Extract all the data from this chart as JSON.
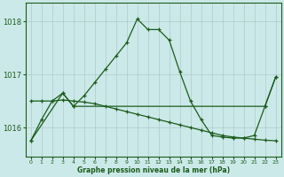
{
  "title": "Graphe pression niveau de la mer (hPa)",
  "background_color": "#cce9e9",
  "grid_color": "#b0c8c8",
  "line_color": "#1a5c1a",
  "xlim": [
    -0.5,
    23.5
  ],
  "ylim": [
    1015.45,
    1018.35
  ],
  "yticks": [
    1016,
    1017,
    1018
  ],
  "xticks": [
    0,
    1,
    2,
    3,
    4,
    5,
    6,
    7,
    8,
    9,
    10,
    11,
    12,
    13,
    14,
    15,
    16,
    17,
    18,
    19,
    20,
    21,
    22,
    23
  ],
  "series1_x": [
    0,
    1,
    2,
    3,
    4,
    5,
    6,
    7,
    8,
    9,
    10,
    11,
    12,
    13,
    14,
    15,
    16,
    17,
    18,
    19,
    20,
    21,
    22,
    23
  ],
  "series1_y": [
    1015.75,
    1016.15,
    1016.5,
    1016.65,
    1016.4,
    1016.6,
    1016.85,
    1017.1,
    1017.35,
    1017.6,
    1018.05,
    1017.85,
    1017.85,
    1017.65,
    1017.05,
    1016.5,
    1016.15,
    1015.85,
    1015.82,
    1015.8,
    1015.8,
    1015.85,
    1016.4,
    1016.95
  ],
  "series2_x": [
    0,
    1,
    2,
    3,
    4,
    5,
    6,
    7,
    8,
    9,
    10,
    11,
    12,
    13,
    14,
    15,
    16,
    17,
    18,
    19,
    20,
    21,
    22,
    23
  ],
  "series2_y": [
    1016.5,
    1016.5,
    1016.5,
    1016.52,
    1016.5,
    1016.48,
    1016.45,
    1016.4,
    1016.35,
    1016.3,
    1016.25,
    1016.2,
    1016.15,
    1016.1,
    1016.05,
    1016.0,
    1015.95,
    1015.9,
    1015.85,
    1015.82,
    1015.8,
    1015.78,
    1015.76,
    1015.75
  ],
  "series3_x": [
    0,
    3,
    4,
    22,
    23
  ],
  "series3_y": [
    1015.75,
    1016.65,
    1016.4,
    1016.4,
    1016.95
  ]
}
